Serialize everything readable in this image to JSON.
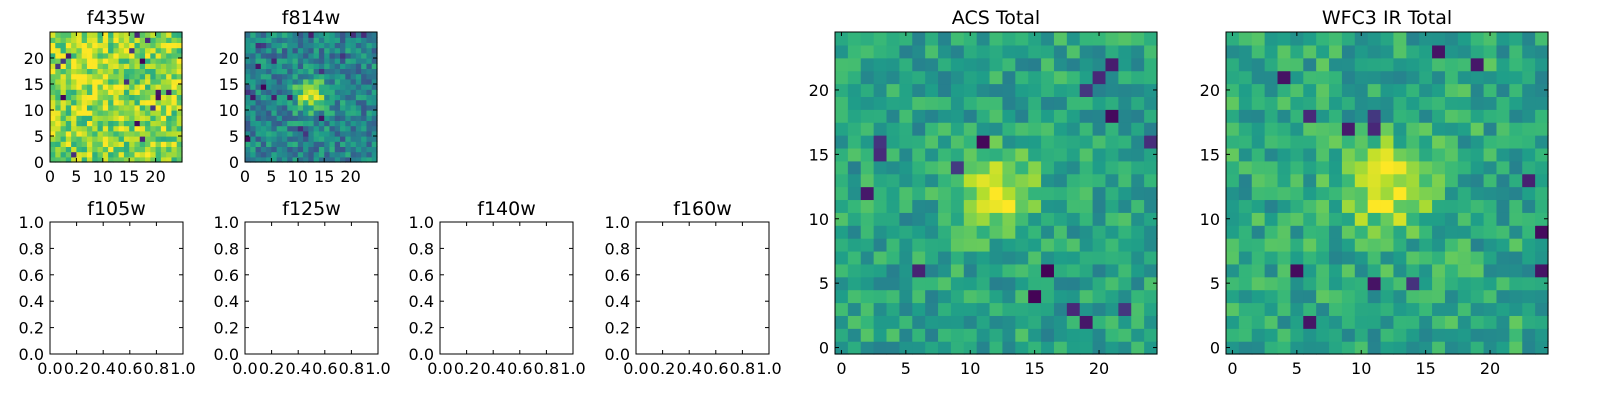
{
  "chart_data": [
    {
      "type": "heatmap",
      "title": "f435w",
      "xlabel": "",
      "ylabel": "",
      "grid_size": 25,
      "xlim": [
        0,
        25
      ],
      "ylim": [
        0,
        25
      ],
      "xticks": [
        0,
        5,
        10,
        15,
        20
      ],
      "yticks": [
        0,
        5,
        10,
        15,
        20
      ],
      "tick_labels_x": [
        "0",
        "5",
        "10",
        "15",
        "20"
      ],
      "tick_labels_y": [
        "0",
        "5",
        "10",
        "15",
        "20"
      ],
      "colormap": "viridis",
      "value_range": [
        0,
        1
      ],
      "pattern": {
        "seed": 11,
        "background": 0.82,
        "noise": 0.42,
        "peak": 0.08,
        "peak_x": 8.5,
        "peak_y": 16,
        "peak_sigma": 3,
        "dark_count": 16
      }
    },
    {
      "type": "heatmap",
      "title": "f814w",
      "xlabel": "",
      "ylabel": "",
      "grid_size": 25,
      "xlim": [
        0,
        25
      ],
      "ylim": [
        0,
        25
      ],
      "xticks": [
        0,
        5,
        10,
        15,
        20
      ],
      "yticks": [
        0,
        5,
        10,
        15,
        20
      ],
      "tick_labels_x": [
        "0",
        "5",
        "10",
        "15",
        "20"
      ],
      "tick_labels_y": [
        "0",
        "5",
        "10",
        "15",
        "20"
      ],
      "colormap": "viridis",
      "value_range": [
        0,
        1
      ],
      "pattern": {
        "seed": 23,
        "background": 0.45,
        "noise": 0.38,
        "peak": 0.5,
        "peak_x": 12,
        "peak_y": 12.5,
        "peak_sigma": 2.2,
        "dark_count": 18
      }
    },
    {
      "type": "heatmap",
      "title": "f105w",
      "xlabel": "",
      "ylabel": "",
      "empty": true,
      "xlim": [
        0,
        1
      ],
      "ylim": [
        0,
        1
      ],
      "xticks": [
        0,
        0.2,
        0.4,
        0.6,
        0.8,
        1
      ],
      "yticks": [
        0,
        0.2,
        0.4,
        0.6,
        0.8,
        1
      ],
      "tick_labels_x": [
        "0.0",
        "0.2",
        "0.4",
        "0.6",
        "0.8",
        "1.0"
      ],
      "tick_labels_y": [
        "0.0",
        "0.2",
        "0.4",
        "0.6",
        "0.8",
        "1.0"
      ]
    },
    {
      "type": "heatmap",
      "title": "f125w",
      "xlabel": "",
      "ylabel": "",
      "empty": true,
      "xlim": [
        0,
        1
      ],
      "ylim": [
        0,
        1
      ],
      "xticks": [
        0,
        0.2,
        0.4,
        0.6,
        0.8,
        1
      ],
      "yticks": [
        0,
        0.2,
        0.4,
        0.6,
        0.8,
        1
      ],
      "tick_labels_x": [
        "0.0",
        "0.2",
        "0.4",
        "0.6",
        "0.8",
        "1.0"
      ],
      "tick_labels_y": [
        "0.0",
        "0.2",
        "0.4",
        "0.6",
        "0.8",
        "1.0"
      ]
    },
    {
      "type": "heatmap",
      "title": "f140w",
      "xlabel": "",
      "ylabel": "",
      "empty": true,
      "xlim": [
        0,
        1
      ],
      "ylim": [
        0,
        1
      ],
      "xticks": [
        0,
        0.2,
        0.4,
        0.6,
        0.8,
        1
      ],
      "yticks": [
        0,
        0.2,
        0.4,
        0.6,
        0.8,
        1
      ],
      "tick_labels_x": [
        "0.0",
        "0.2",
        "0.4",
        "0.6",
        "0.8",
        "1.0"
      ],
      "tick_labels_y": [
        "0.0",
        "0.2",
        "0.4",
        "0.6",
        "0.8",
        "1.0"
      ]
    },
    {
      "type": "heatmap",
      "title": "f160w",
      "xlabel": "",
      "ylabel": "",
      "empty": true,
      "xlim": [
        0,
        1
      ],
      "ylim": [
        0,
        1
      ],
      "xticks": [
        0,
        0.2,
        0.4,
        0.6,
        0.8,
        1
      ],
      "yticks": [
        0,
        0.2,
        0.4,
        0.6,
        0.8,
        1
      ],
      "tick_labels_x": [
        "0.0",
        "0.2",
        "0.4",
        "0.6",
        "0.8",
        "1.0"
      ],
      "tick_labels_y": [
        "0.0",
        "0.2",
        "0.4",
        "0.6",
        "0.8",
        "1.0"
      ]
    },
    {
      "type": "heatmap",
      "title": "ACS Total",
      "xlabel": "",
      "ylabel": "",
      "grid_size": 25,
      "xlim": [
        -0.5,
        24.5
      ],
      "ylim": [
        -0.5,
        24.5
      ],
      "xticks": [
        0,
        5,
        10,
        15,
        20
      ],
      "yticks": [
        0,
        5,
        10,
        15,
        20
      ],
      "tick_labels_x": [
        "0",
        "5",
        "10",
        "15",
        "20"
      ],
      "tick_labels_y": [
        "0",
        "5",
        "10",
        "15",
        "20"
      ],
      "colormap": "viridis",
      "value_range": [
        0,
        1
      ],
      "pattern": {
        "seed": 37,
        "background": 0.58,
        "noise": 0.3,
        "peak": 0.4,
        "peak_x": 12,
        "peak_y": 12,
        "peak_sigma": 2.1,
        "dark_count": 16
      }
    },
    {
      "type": "heatmap",
      "title": "WFC3 IR Total",
      "xlabel": "",
      "ylabel": "",
      "grid_size": 25,
      "xlim": [
        -0.5,
        24.5
      ],
      "ylim": [
        -0.5,
        24.5
      ],
      "xticks": [
        0,
        5,
        10,
        15,
        20
      ],
      "yticks": [
        0,
        5,
        10,
        15,
        20
      ],
      "tick_labels_x": [
        "0",
        "5",
        "10",
        "15",
        "20"
      ],
      "tick_labels_y": [
        "0",
        "5",
        "10",
        "15",
        "20"
      ],
      "colormap": "viridis",
      "value_range": [
        0,
        1
      ],
      "pattern": {
        "seed": 53,
        "background": 0.6,
        "noise": 0.32,
        "peak": 0.38,
        "peak_x": 12,
        "peak_y": 12.5,
        "peak_sigma": 2.3,
        "dark_count": 14
      }
    }
  ]
}
